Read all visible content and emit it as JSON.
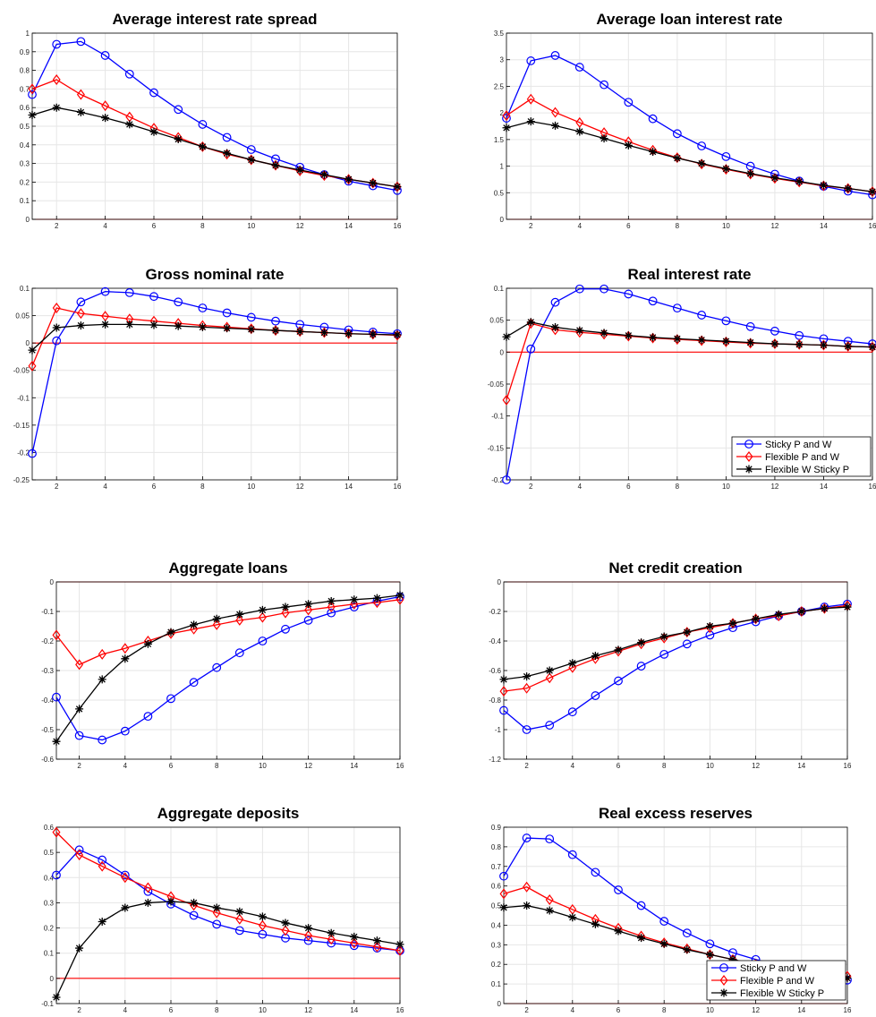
{
  "colors": {
    "sticky": "#0000ff",
    "flexible": "#ff0000",
    "flexW": "#000000",
    "zero_line": "#ff0000",
    "grid": "#e6e6e6",
    "axes": "#000000"
  },
  "series_names": [
    "Sticky P and W",
    "Flexible P and W",
    "Flexible W Sticky P"
  ],
  "chart_data": [
    {
      "type": "line",
      "title": "Average interest rate spread",
      "x": [
        1,
        2,
        3,
        4,
        5,
        6,
        7,
        8,
        9,
        10,
        11,
        12,
        13,
        14,
        15,
        16
      ],
      "xlim": [
        1,
        16
      ],
      "xticks": [
        2,
        4,
        6,
        8,
        10,
        12,
        14,
        16
      ],
      "ylim": [
        0,
        1
      ],
      "yticks": [
        0,
        0.1,
        0.2,
        0.3,
        0.4,
        0.5,
        0.6,
        0.7,
        0.8,
        0.9,
        1
      ],
      "ytick_labels": [
        "0",
        "0.1",
        "0.2",
        "0.3",
        "0.4",
        "0.5",
        "0.6",
        "0.7",
        "0.8",
        "0.9",
        "1"
      ],
      "grid": true,
      "legend": false,
      "series": [
        {
          "values": [
            0.67,
            0.94,
            0.955,
            0.88,
            0.78,
            0.68,
            0.59,
            0.51,
            0.44,
            0.375,
            0.325,
            0.28,
            0.24,
            0.205,
            0.18,
            0.155
          ]
        },
        {
          "values": [
            0.7,
            0.75,
            0.67,
            0.61,
            0.55,
            0.49,
            0.44,
            0.39,
            0.35,
            0.32,
            0.29,
            0.26,
            0.235,
            0.215,
            0.195,
            0.175
          ]
        },
        {
          "values": [
            0.56,
            0.6,
            0.575,
            0.545,
            0.51,
            0.47,
            0.43,
            0.39,
            0.355,
            0.32,
            0.29,
            0.265,
            0.24,
            0.215,
            0.195,
            0.175
          ]
        }
      ]
    },
    {
      "type": "line",
      "title": "Average loan interest rate",
      "x": [
        1,
        2,
        3,
        4,
        5,
        6,
        7,
        8,
        9,
        10,
        11,
        12,
        13,
        14,
        15,
        16
      ],
      "xlim": [
        1,
        16
      ],
      "xticks": [
        2,
        4,
        6,
        8,
        10,
        12,
        14,
        16
      ],
      "ylim": [
        0,
        3.5
      ],
      "yticks": [
        0,
        0.5,
        1,
        1.5,
        2,
        2.5,
        3,
        3.5
      ],
      "ytick_labels": [
        "0",
        "0.5",
        "1",
        "1.5",
        "2",
        "2.5",
        "3",
        "3.5"
      ],
      "grid": true,
      "legend": false,
      "series": [
        {
          "values": [
            1.9,
            2.98,
            3.08,
            2.86,
            2.53,
            2.2,
            1.89,
            1.61,
            1.38,
            1.18,
            1.0,
            0.85,
            0.72,
            0.62,
            0.53,
            0.46
          ]
        },
        {
          "values": [
            1.95,
            2.26,
            2.01,
            1.82,
            1.63,
            1.46,
            1.3,
            1.16,
            1.04,
            0.94,
            0.85,
            0.77,
            0.7,
            0.63,
            0.58,
            0.52
          ]
        },
        {
          "values": [
            1.72,
            1.84,
            1.76,
            1.65,
            1.52,
            1.39,
            1.27,
            1.15,
            1.05,
            0.95,
            0.86,
            0.78,
            0.71,
            0.64,
            0.58,
            0.52
          ]
        }
      ]
    },
    {
      "type": "line",
      "title": "Gross nominal rate",
      "x": [
        1,
        2,
        3,
        4,
        5,
        6,
        7,
        8,
        9,
        10,
        11,
        12,
        13,
        14,
        15,
        16
      ],
      "xlim": [
        1,
        16
      ],
      "xticks": [
        2,
        4,
        6,
        8,
        10,
        12,
        14,
        16
      ],
      "ylim": [
        -0.25,
        0.1
      ],
      "yticks": [
        -0.25,
        -0.2,
        -0.15,
        -0.1,
        -0.05,
        0,
        0.05,
        0.1
      ],
      "ytick_labels": [
        "-0.25",
        "-0.2",
        "-0.15",
        "-0.1",
        "-0.05",
        "0",
        "0.05",
        "0.1"
      ],
      "grid": true,
      "legend": false,
      "series": [
        {
          "values": [
            -0.202,
            0.004,
            0.075,
            0.094,
            0.092,
            0.085,
            0.075,
            0.064,
            0.055,
            0.047,
            0.04,
            0.034,
            0.029,
            0.024,
            0.02,
            0.017
          ]
        },
        {
          "values": [
            -0.042,
            0.064,
            0.054,
            0.049,
            0.044,
            0.04,
            0.036,
            0.032,
            0.029,
            0.026,
            0.023,
            0.021,
            0.019,
            0.017,
            0.016,
            0.014
          ]
        },
        {
          "values": [
            -0.013,
            0.028,
            0.032,
            0.034,
            0.034,
            0.033,
            0.031,
            0.029,
            0.027,
            0.025,
            0.023,
            0.021,
            0.019,
            0.017,
            0.016,
            0.015
          ]
        }
      ]
    },
    {
      "type": "line",
      "title": "Real interest rate",
      "x": [
        1,
        2,
        3,
        4,
        5,
        6,
        7,
        8,
        9,
        10,
        11,
        12,
        13,
        14,
        15,
        16
      ],
      "xlim": [
        1,
        16
      ],
      "xticks": [
        2,
        4,
        6,
        8,
        10,
        12,
        14,
        16
      ],
      "ylim": [
        -0.2,
        0.1
      ],
      "yticks": [
        -0.2,
        -0.15,
        -0.1,
        -0.05,
        0,
        0.05,
        0.1
      ],
      "ytick_labels": [
        "-0.2",
        "-0.15",
        "-0.1",
        "-0.05",
        "0",
        "0.05",
        "0.1"
      ],
      "grid": true,
      "legend": true,
      "legend_position": "bottom-right",
      "series": [
        {
          "values": [
            -0.2,
            0.005,
            0.078,
            0.099,
            0.099,
            0.091,
            0.08,
            0.069,
            0.058,
            0.049,
            0.04,
            0.033,
            0.026,
            0.021,
            0.017,
            0.013
          ]
        },
        {
          "values": [
            -0.075,
            0.045,
            0.035,
            0.031,
            0.028,
            0.025,
            0.022,
            0.02,
            0.018,
            0.016,
            0.014,
            0.013,
            0.012,
            0.011,
            0.009,
            0.008
          ]
        },
        {
          "values": [
            0.024,
            0.047,
            0.039,
            0.034,
            0.03,
            0.026,
            0.023,
            0.021,
            0.019,
            0.017,
            0.015,
            0.013,
            0.012,
            0.011,
            0.009,
            0.008
          ]
        }
      ]
    },
    {
      "type": "line",
      "title": "Aggregate loans",
      "x": [
        1,
        2,
        3,
        4,
        5,
        6,
        7,
        8,
        9,
        10,
        11,
        12,
        13,
        14,
        15,
        16
      ],
      "xlim": [
        1,
        16
      ],
      "xticks": [
        2,
        4,
        6,
        8,
        10,
        12,
        14,
        16
      ],
      "ylim": [
        -0.6,
        0
      ],
      "yticks": [
        -0.6,
        -0.5,
        -0.4,
        -0.3,
        -0.2,
        -0.1,
        0
      ],
      "ytick_labels": [
        "-0.6",
        "-0.5",
        "-0.4",
        "-0.3",
        "-0.2",
        "-0.1",
        "0"
      ],
      "grid": true,
      "legend": false,
      "series": [
        {
          "values": [
            -0.39,
            -0.52,
            -0.535,
            -0.505,
            -0.455,
            -0.395,
            -0.34,
            -0.29,
            -0.24,
            -0.2,
            -0.16,
            -0.13,
            -0.105,
            -0.085,
            -0.065,
            -0.05
          ]
        },
        {
          "values": [
            -0.18,
            -0.28,
            -0.245,
            -0.225,
            -0.2,
            -0.175,
            -0.16,
            -0.145,
            -0.13,
            -0.12,
            -0.105,
            -0.095,
            -0.085,
            -0.075,
            -0.07,
            -0.06
          ]
        },
        {
          "values": [
            -0.54,
            -0.43,
            -0.33,
            -0.26,
            -0.21,
            -0.17,
            -0.145,
            -0.125,
            -0.11,
            -0.095,
            -0.085,
            -0.075,
            -0.065,
            -0.06,
            -0.055,
            -0.045
          ]
        }
      ]
    },
    {
      "type": "line",
      "title": "Net credit creation",
      "x": [
        1,
        2,
        3,
        4,
        5,
        6,
        7,
        8,
        9,
        10,
        11,
        12,
        13,
        14,
        15,
        16
      ],
      "xlim": [
        1,
        16
      ],
      "xticks": [
        2,
        4,
        6,
        8,
        10,
        12,
        14,
        16
      ],
      "ylim": [
        -1.2,
        0
      ],
      "yticks": [
        -1.2,
        -1,
        -0.8,
        -0.6,
        -0.4,
        -0.2,
        0
      ],
      "ytick_labels": [
        "-1.2",
        "-1",
        "-0.8",
        "-0.6",
        "-0.4",
        "-0.2",
        "0"
      ],
      "grid": true,
      "legend": false,
      "series": [
        {
          "values": [
            -0.87,
            -1.0,
            -0.97,
            -0.88,
            -0.77,
            -0.67,
            -0.57,
            -0.49,
            -0.42,
            -0.36,
            -0.31,
            -0.27,
            -0.23,
            -0.2,
            -0.17,
            -0.15
          ]
        },
        {
          "values": [
            -0.74,
            -0.72,
            -0.65,
            -0.58,
            -0.52,
            -0.47,
            -0.42,
            -0.38,
            -0.34,
            -0.31,
            -0.28,
            -0.25,
            -0.23,
            -0.2,
            -0.18,
            -0.16
          ]
        },
        {
          "values": [
            -0.66,
            -0.64,
            -0.6,
            -0.55,
            -0.5,
            -0.46,
            -0.41,
            -0.37,
            -0.34,
            -0.3,
            -0.28,
            -0.25,
            -0.22,
            -0.2,
            -0.18,
            -0.17
          ]
        }
      ]
    },
    {
      "type": "line",
      "title": "Aggregate deposits",
      "x": [
        1,
        2,
        3,
        4,
        5,
        6,
        7,
        8,
        9,
        10,
        11,
        12,
        13,
        14,
        15,
        16
      ],
      "xlim": [
        1,
        16
      ],
      "xticks": [
        2,
        4,
        6,
        8,
        10,
        12,
        14,
        16
      ],
      "ylim": [
        -0.1,
        0.6
      ],
      "yticks": [
        -0.1,
        0,
        0.1,
        0.2,
        0.3,
        0.4,
        0.5,
        0.6
      ],
      "ytick_labels": [
        "-0.1",
        "0",
        "0.1",
        "0.2",
        "0.3",
        "0.4",
        "0.5",
        "0.6"
      ],
      "grid": true,
      "legend": false,
      "series": [
        {
          "values": [
            0.41,
            0.51,
            0.47,
            0.41,
            0.345,
            0.295,
            0.25,
            0.215,
            0.19,
            0.175,
            0.16,
            0.15,
            0.14,
            0.13,
            0.12,
            0.11
          ]
        },
        {
          "values": [
            0.58,
            0.49,
            0.445,
            0.4,
            0.36,
            0.325,
            0.29,
            0.26,
            0.235,
            0.21,
            0.19,
            0.17,
            0.155,
            0.14,
            0.125,
            0.11
          ]
        },
        {
          "values": [
            -0.075,
            0.12,
            0.225,
            0.28,
            0.3,
            0.305,
            0.3,
            0.28,
            0.265,
            0.245,
            0.22,
            0.2,
            0.18,
            0.165,
            0.15,
            0.135
          ]
        }
      ]
    },
    {
      "type": "line",
      "title": "Real excess reserves",
      "x": [
        1,
        2,
        3,
        4,
        5,
        6,
        7,
        8,
        9,
        10,
        11,
        12,
        13,
        14,
        15,
        16
      ],
      "xlim": [
        1,
        16
      ],
      "xticks": [
        2,
        4,
        6,
        8,
        10,
        12,
        14,
        16
      ],
      "ylim": [
        0,
        0.9
      ],
      "yticks": [
        0,
        0.1,
        0.2,
        0.3,
        0.4,
        0.5,
        0.6,
        0.7,
        0.8,
        0.9
      ],
      "ytick_labels": [
        "0",
        "0.1",
        "0.2",
        "0.3",
        "0.4",
        "0.5",
        "0.6",
        "0.7",
        "0.8",
        "0.9"
      ],
      "grid": true,
      "legend": true,
      "legend_position": "bottom-right",
      "series": [
        {
          "values": [
            0.65,
            0.845,
            0.84,
            0.76,
            0.67,
            0.58,
            0.5,
            0.42,
            0.36,
            0.305,
            0.26,
            0.225,
            0.195,
            0.165,
            0.14,
            0.12
          ]
        },
        {
          "values": [
            0.56,
            0.595,
            0.53,
            0.48,
            0.43,
            0.385,
            0.345,
            0.31,
            0.28,
            0.25,
            0.225,
            0.2,
            0.18,
            0.16,
            0.15,
            0.14
          ]
        },
        {
          "values": [
            0.49,
            0.5,
            0.475,
            0.44,
            0.405,
            0.37,
            0.335,
            0.305,
            0.275,
            0.25,
            0.225,
            0.2,
            0.18,
            0.16,
            0.145,
            0.13
          ]
        }
      ]
    }
  ]
}
